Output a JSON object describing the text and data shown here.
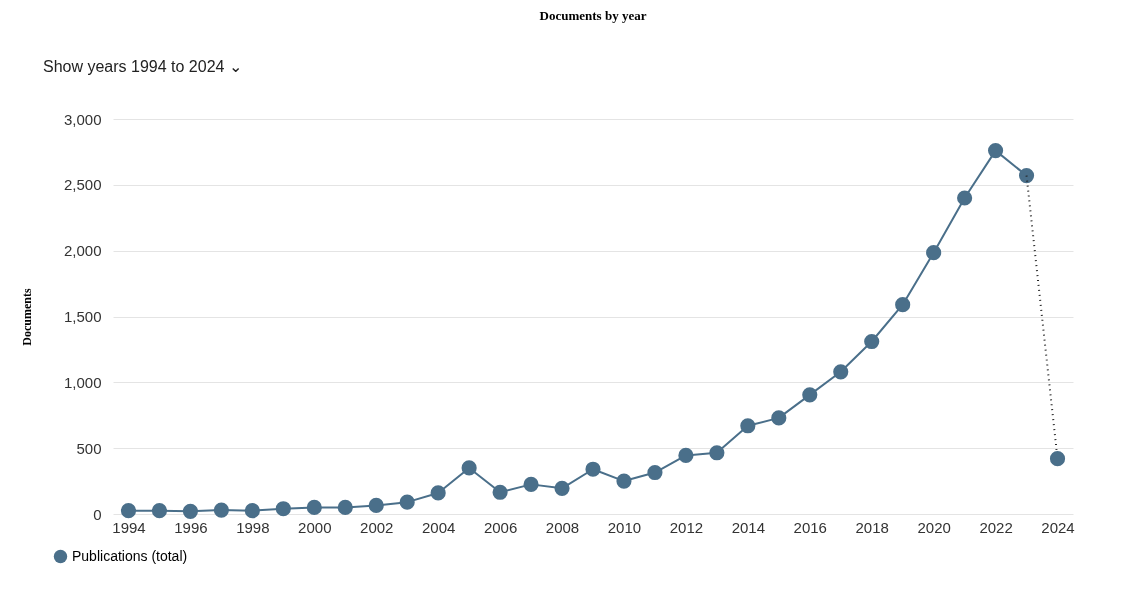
{
  "chart_data": {
    "type": "line",
    "title": "Documents by year",
    "ylabel": "Documents",
    "annotations": [
      "Show years 1994 to 2024 ⌄"
    ],
    "series": [
      {
        "name": "Publications (total)",
        "color": "#4a6f8a",
        "marker": "circle",
        "line_style": "solid",
        "x": [
          1994,
          1995,
          1996,
          1997,
          1998,
          1999,
          2000,
          2001,
          2002,
          2003,
          2004,
          2005,
          2006,
          2007,
          2008,
          2009,
          2010,
          2011,
          2012,
          2013,
          2014,
          2015,
          2016,
          2017,
          2018,
          2019,
          2020,
          2021,
          2022,
          2023
        ],
        "values": [
          25,
          25,
          20,
          30,
          25,
          40,
          50,
          50,
          65,
          90,
          160,
          350,
          165,
          225,
          195,
          340,
          250,
          315,
          445,
          465,
          670,
          730,
          905,
          1080,
          1310,
          1590,
          1985,
          2400,
          2760,
          2570
        ]
      },
      {
        "color": "#222222",
        "marker": "none",
        "line_style": "dotted",
        "x": [
          2023,
          2024
        ],
        "values": [
          2570,
          420
        ]
      },
      {
        "color": "#4a6f8a",
        "marker": "circle",
        "x": [
          2024
        ],
        "values": [
          420
        ]
      }
    ],
    "xlim": [
      1993.5,
      2024.5
    ],
    "xticks": [
      1994,
      1996,
      1998,
      2000,
      2002,
      2004,
      2006,
      2008,
      2010,
      2012,
      2014,
      2016,
      2018,
      2020,
      2022,
      2024
    ],
    "ylim": [
      0,
      3000
    ],
    "yticks": [
      0,
      500,
      {
        "value": 1000,
        "label": "1,000"
      },
      {
        "value": 1500,
        "label": "1,500"
      },
      {
        "value": 2000,
        "label": "2,000"
      },
      {
        "value": 2500,
        "label": "2,500"
      },
      {
        "value": 3000,
        "label": "3,000"
      }
    ],
    "grid": "y",
    "legend": "bottom left"
  }
}
